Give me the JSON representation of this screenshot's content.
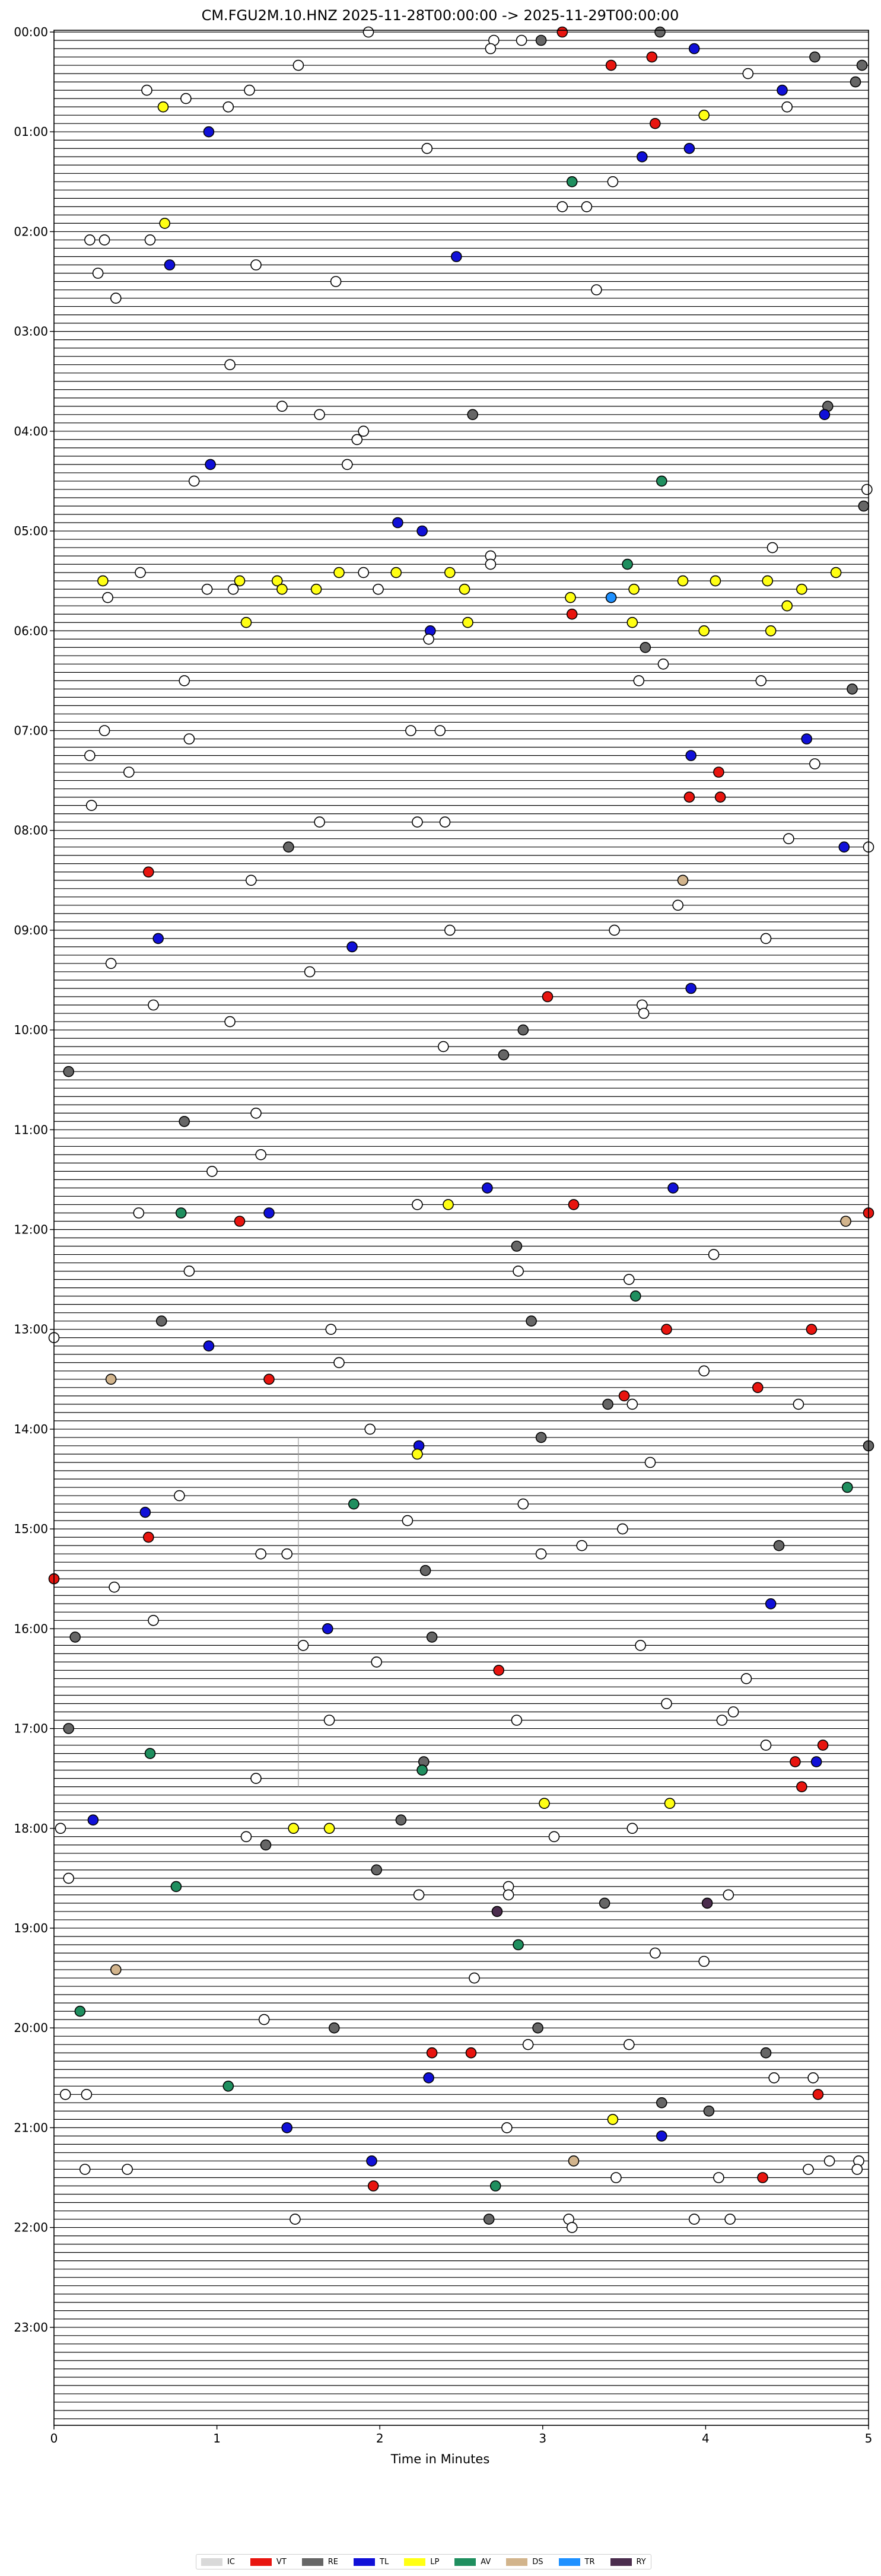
{
  "chart_data": {
    "type": "scatter",
    "title": "CM.FGU2M.10.HNZ  2025-11-28T00:00:00 -> 2025-11-29T00:00:00",
    "xlabel": "Time in Minutes",
    "xlim": [
      0,
      5
    ],
    "x_ticks": [
      "0",
      "1",
      "2",
      "3",
      "4",
      "5"
    ],
    "y_ticks": [
      "00:00",
      "01:00",
      "02:00",
      "03:00",
      "04:00",
      "05:00",
      "06:00",
      "07:00",
      "08:00",
      "09:00",
      "10:00",
      "11:00",
      "12:00",
      "13:00",
      "14:00",
      "15:00",
      "16:00",
      "17:00",
      "18:00",
      "19:00",
      "20:00",
      "21:00",
      "22:00",
      "23:00"
    ],
    "trace_minutes": 5,
    "trace_count": 288,
    "legend": [
      {
        "code": "IC",
        "color": "#d9d9d9"
      },
      {
        "code": "VT",
        "color": "#e8150f"
      },
      {
        "code": "RE",
        "color": "#666666"
      },
      {
        "code": "TL",
        "color": "#1010d8"
      },
      {
        "code": "LP",
        "color": "#ffff14"
      },
      {
        "code": "AV",
        "color": "#1f8f5f"
      },
      {
        "code": "DS",
        "color": "#d2b48c"
      },
      {
        "code": "TR",
        "color": "#1e90ff"
      },
      {
        "code": "RY",
        "color": "#4b2d4e"
      }
    ],
    "marker_colors": {
      "IC": "#ffffff",
      "VT": "#e8150f",
      "RE": "#666666",
      "TL": "#1010d8",
      "LP": "#ffff14",
      "AV": "#1f8f5f",
      "DS": "#d2b48c",
      "TR": "#1e90ff",
      "RY": "#4b2d4e"
    },
    "events": [
      [
        "00:00",
        1.93,
        "IC"
      ],
      [
        "00:00",
        3.12,
        "VT"
      ],
      [
        "00:00",
        3.72,
        "RE"
      ],
      [
        "00:05",
        2.7,
        "IC"
      ],
      [
        "00:05",
        2.99,
        "RE"
      ],
      [
        "00:05",
        2.87,
        "IC"
      ],
      [
        "00:10",
        2.68,
        "IC"
      ],
      [
        "00:10",
        3.93,
        "TL"
      ],
      [
        "00:15",
        3.67,
        "VT"
      ],
      [
        "00:15",
        4.67,
        "RE"
      ],
      [
        "00:20",
        1.5,
        "IC"
      ],
      [
        "00:20",
        3.42,
        "VT"
      ],
      [
        "00:20",
        4.96,
        "RE"
      ],
      [
        "00:25",
        4.26,
        "IC"
      ],
      [
        "00:30",
        4.92,
        "RE"
      ],
      [
        "00:35",
        0.57,
        "IC"
      ],
      [
        "00:35",
        1.2,
        "IC"
      ],
      [
        "00:35",
        4.47,
        "TL"
      ],
      [
        "00:40",
        0.81,
        "IC"
      ],
      [
        "00:45",
        0.67,
        "LP"
      ],
      [
        "00:45",
        1.07,
        "IC"
      ],
      [
        "00:45",
        4.5,
        "IC"
      ],
      [
        "00:50",
        3.99,
        "LP"
      ],
      [
        "00:55",
        3.69,
        "VT"
      ],
      [
        "01:00",
        0.95,
        "TL"
      ],
      [
        "01:10",
        2.29,
        "IC"
      ],
      [
        "01:10",
        3.9,
        "TL"
      ],
      [
        "01:15",
        3.61,
        "TL"
      ],
      [
        "01:30",
        3.18,
        "AV"
      ],
      [
        "01:30",
        3.43,
        "IC"
      ],
      [
        "01:45",
        3.12,
        "IC"
      ],
      [
        "01:45",
        3.27,
        "IC"
      ],
      [
        "01:55",
        0.68,
        "LP"
      ],
      [
        "02:05",
        0.22,
        "IC"
      ],
      [
        "02:05",
        0.31,
        "IC"
      ],
      [
        "02:05",
        0.59,
        "IC"
      ],
      [
        "02:15",
        2.47,
        "TL"
      ],
      [
        "02:20",
        0.71,
        "TL"
      ],
      [
        "02:20",
        1.24,
        "IC"
      ],
      [
        "02:25",
        0.27,
        "IC"
      ],
      [
        "02:30",
        1.73,
        "IC"
      ],
      [
        "02:35",
        3.33,
        "IC"
      ],
      [
        "02:40",
        0.38,
        "IC"
      ],
      [
        "03:20",
        1.08,
        "IC"
      ],
      [
        "03:45",
        1.4,
        "IC"
      ],
      [
        "03:45",
        4.75,
        "RE"
      ],
      [
        "03:50",
        1.63,
        "IC"
      ],
      [
        "03:50",
        2.57,
        "RE"
      ],
      [
        "03:50",
        4.73,
        "TL"
      ],
      [
        "04:00",
        1.9,
        "IC"
      ],
      [
        "04:05",
        1.86,
        "IC"
      ],
      [
        "04:20",
        0.96,
        "TL"
      ],
      [
        "04:20",
        1.8,
        "IC"
      ],
      [
        "04:30",
        0.86,
        "IC"
      ],
      [
        "04:30",
        3.73,
        "AV"
      ],
      [
        "04:35",
        4.99,
        "IC"
      ],
      [
        "04:45",
        4.97,
        "RE"
      ],
      [
        "04:55",
        2.11,
        "TL"
      ],
      [
        "05:00",
        2.26,
        "TL"
      ],
      [
        "05:10",
        4.41,
        "IC"
      ],
      [
        "05:15",
        2.68,
        "IC"
      ],
      [
        "05:20",
        2.68,
        "IC"
      ],
      [
        "05:20",
        3.52,
        "AV"
      ],
      [
        "05:25",
        0.53,
        "IC"
      ],
      [
        "05:25",
        1.75,
        "LP"
      ],
      [
        "05:25",
        1.9,
        "IC"
      ],
      [
        "05:25",
        2.1,
        "LP"
      ],
      [
        "05:25",
        2.43,
        "LP"
      ],
      [
        "05:25",
        4.8,
        "LP"
      ],
      [
        "05:30",
        0.3,
        "LP"
      ],
      [
        "05:30",
        1.14,
        "LP"
      ],
      [
        "05:30",
        1.37,
        "LP"
      ],
      [
        "05:30",
        3.86,
        "LP"
      ],
      [
        "05:30",
        4.06,
        "LP"
      ],
      [
        "05:30",
        4.38,
        "LP"
      ],
      [
        "05:35",
        0.94,
        "IC"
      ],
      [
        "05:35",
        1.1,
        "IC"
      ],
      [
        "05:35",
        1.4,
        "LP"
      ],
      [
        "05:35",
        1.61,
        "LP"
      ],
      [
        "05:35",
        1.99,
        "IC"
      ],
      [
        "05:35",
        2.52,
        "LP"
      ],
      [
        "05:35",
        3.56,
        "LP"
      ],
      [
        "05:35",
        4.59,
        "LP"
      ],
      [
        "05:40",
        0.33,
        "IC"
      ],
      [
        "05:40",
        3.17,
        "LP"
      ],
      [
        "05:40",
        3.42,
        "TR"
      ],
      [
        "05:45",
        4.5,
        "LP"
      ],
      [
        "05:50",
        3.18,
        "VT"
      ],
      [
        "05:55",
        1.18,
        "LP"
      ],
      [
        "05:55",
        2.54,
        "LP"
      ],
      [
        "05:55",
        3.55,
        "LP"
      ],
      [
        "06:00",
        2.31,
        "TL"
      ],
      [
        "06:00",
        3.99,
        "LP"
      ],
      [
        "06:00",
        4.4,
        "LP"
      ],
      [
        "06:05",
        2.3,
        "IC"
      ],
      [
        "06:10",
        3.63,
        "RE"
      ],
      [
        "06:20",
        3.74,
        "IC"
      ],
      [
        "06:30",
        0.8,
        "IC"
      ],
      [
        "06:30",
        3.59,
        "IC"
      ],
      [
        "06:30",
        4.34,
        "IC"
      ],
      [
        "06:35",
        4.9,
        "RE"
      ],
      [
        "07:00",
        0.31,
        "IC"
      ],
      [
        "07:00",
        2.19,
        "IC"
      ],
      [
        "07:00",
        2.37,
        "IC"
      ],
      [
        "07:05",
        0.83,
        "IC"
      ],
      [
        "07:05",
        4.62,
        "TL"
      ],
      [
        "07:15",
        0.22,
        "IC"
      ],
      [
        "07:15",
        3.91,
        "TL"
      ],
      [
        "07:20",
        4.67,
        "IC"
      ],
      [
        "07:25",
        0.46,
        "IC"
      ],
      [
        "07:25",
        4.08,
        "VT"
      ],
      [
        "07:40",
        3.9,
        "VT"
      ],
      [
        "07:40",
        4.09,
        "VT"
      ],
      [
        "07:45",
        0.23,
        "IC"
      ],
      [
        "07:55",
        1.63,
        "IC"
      ],
      [
        "07:55",
        2.23,
        "IC"
      ],
      [
        "07:55",
        2.4,
        "IC"
      ],
      [
        "08:05",
        4.51,
        "IC"
      ],
      [
        "08:10",
        1.44,
        "RE"
      ],
      [
        "08:10",
        4.85,
        "TL"
      ],
      [
        "08:10",
        5.0,
        "IC"
      ],
      [
        "08:25",
        0.58,
        "VT"
      ],
      [
        "08:30",
        1.21,
        "IC"
      ],
      [
        "08:30",
        3.86,
        "DS"
      ],
      [
        "08:45",
        3.83,
        "IC"
      ],
      [
        "09:00",
        2.43,
        "IC"
      ],
      [
        "09:00",
        3.44,
        "IC"
      ],
      [
        "09:05",
        0.64,
        "TL"
      ],
      [
        "09:05",
        4.37,
        "IC"
      ],
      [
        "09:10",
        1.83,
        "TL"
      ],
      [
        "09:20",
        0.35,
        "IC"
      ],
      [
        "09:25",
        1.57,
        "IC"
      ],
      [
        "09:35",
        3.91,
        "TL"
      ],
      [
        "09:40",
        3.03,
        "VT"
      ],
      [
        "09:45",
        0.61,
        "IC"
      ],
      [
        "09:45",
        3.61,
        "IC"
      ],
      [
        "09:50",
        3.62,
        "IC"
      ],
      [
        "09:55",
        1.08,
        "IC"
      ],
      [
        "10:00",
        2.88,
        "RE"
      ],
      [
        "10:10",
        2.39,
        "IC"
      ],
      [
        "10:15",
        2.76,
        "RE"
      ],
      [
        "10:25",
        0.09,
        "RE"
      ],
      [
        "10:50",
        1.24,
        "IC"
      ],
      [
        "10:55",
        0.8,
        "RE"
      ],
      [
        "11:15",
        1.27,
        "IC"
      ],
      [
        "11:25",
        0.97,
        "IC"
      ],
      [
        "11:35",
        2.66,
        "TL"
      ],
      [
        "11:35",
        3.8,
        "TL"
      ],
      [
        "11:45",
        2.23,
        "IC"
      ],
      [
        "11:45",
        2.42,
        "LP"
      ],
      [
        "11:45",
        3.19,
        "VT"
      ],
      [
        "11:50",
        0.52,
        "IC"
      ],
      [
        "11:50",
        0.78,
        "AV"
      ],
      [
        "11:50",
        1.32,
        "TL"
      ],
      [
        "11:50",
        5.0,
        "VT"
      ],
      [
        "11:55",
        1.14,
        "VT"
      ],
      [
        "11:55",
        4.86,
        "DS"
      ],
      [
        "12:10",
        2.84,
        "RE"
      ],
      [
        "12:15",
        4.05,
        "IC"
      ],
      [
        "12:25",
        0.83,
        "IC"
      ],
      [
        "12:25",
        2.85,
        "IC"
      ],
      [
        "12:30",
        3.53,
        "IC"
      ],
      [
        "12:40",
        3.57,
        "AV"
      ],
      [
        "12:55",
        0.66,
        "RE"
      ],
      [
        "12:55",
        2.93,
        "RE"
      ],
      [
        "13:00",
        1.7,
        "IC"
      ],
      [
        "13:00",
        3.76,
        "VT"
      ],
      [
        "13:00",
        4.65,
        "VT"
      ],
      [
        "13:05",
        0.0,
        "IC"
      ],
      [
        "13:10",
        0.95,
        "TL"
      ],
      [
        "13:20",
        1.75,
        "IC"
      ],
      [
        "13:25",
        3.99,
        "IC"
      ],
      [
        "13:30",
        0.35,
        "DS"
      ],
      [
        "13:30",
        1.32,
        "VT"
      ],
      [
        "13:35",
        4.32,
        "VT"
      ],
      [
        "13:40",
        3.5,
        "VT"
      ],
      [
        "13:45",
        3.4,
        "RE"
      ],
      [
        "13:45",
        3.55,
        "IC"
      ],
      [
        "13:45",
        4.57,
        "IC"
      ],
      [
        "14:00",
        1.94,
        "IC"
      ],
      [
        "14:05",
        2.99,
        "RE"
      ],
      [
        "14:10",
        2.24,
        "TL"
      ],
      [
        "14:10",
        5.0,
        "RE"
      ],
      [
        "14:15",
        2.23,
        "LP"
      ],
      [
        "14:20",
        3.66,
        "IC"
      ],
      [
        "14:35",
        4.87,
        "AV"
      ],
      [
        "14:40",
        0.77,
        "IC"
      ],
      [
        "14:45",
        1.84,
        "AV"
      ],
      [
        "14:45",
        2.88,
        "IC"
      ],
      [
        "14:50",
        0.56,
        "TL"
      ],
      [
        "14:55",
        2.17,
        "IC"
      ],
      [
        "15:00",
        3.49,
        "IC"
      ],
      [
        "15:05",
        0.58,
        "VT"
      ],
      [
        "15:10",
        3.24,
        "IC"
      ],
      [
        "15:10",
        4.45,
        "RE"
      ],
      [
        "15:15",
        1.27,
        "IC"
      ],
      [
        "15:15",
        1.43,
        "IC"
      ],
      [
        "15:15",
        2.99,
        "IC"
      ],
      [
        "15:25",
        2.28,
        "RE"
      ],
      [
        "15:30",
        0.0,
        "VT"
      ],
      [
        "15:35",
        0.37,
        "IC"
      ],
      [
        "15:45",
        4.4,
        "TL"
      ],
      [
        "15:55",
        0.61,
        "IC"
      ],
      [
        "16:00",
        1.68,
        "TL"
      ],
      [
        "16:05",
        0.13,
        "RE"
      ],
      [
        "16:05",
        2.32,
        "RE"
      ],
      [
        "16:10",
        1.53,
        "IC"
      ],
      [
        "16:10",
        3.6,
        "IC"
      ],
      [
        "16:20",
        1.98,
        "IC"
      ],
      [
        "16:25",
        2.73,
        "VT"
      ],
      [
        "16:30",
        4.25,
        "IC"
      ],
      [
        "16:45",
        3.76,
        "IC"
      ],
      [
        "16:50",
        4.17,
        "IC"
      ],
      [
        "16:55",
        1.69,
        "IC"
      ],
      [
        "16:55",
        2.84,
        "IC"
      ],
      [
        "16:55",
        4.1,
        "IC"
      ],
      [
        "17:00",
        0.09,
        "RE"
      ],
      [
        "17:10",
        4.37,
        "IC"
      ],
      [
        "17:10",
        4.72,
        "VT"
      ],
      [
        "17:15",
        0.59,
        "AV"
      ],
      [
        "17:20",
        2.27,
        "RE"
      ],
      [
        "17:20",
        4.55,
        "VT"
      ],
      [
        "17:20",
        4.68,
        "TL"
      ],
      [
        "17:25",
        2.26,
        "AV"
      ],
      [
        "17:30",
        1.24,
        "IC"
      ],
      [
        "17:35",
        4.59,
        "VT"
      ],
      [
        "17:45",
        3.01,
        "LP"
      ],
      [
        "17:45",
        3.78,
        "LP"
      ],
      [
        "17:55",
        0.24,
        "TL"
      ],
      [
        "17:55",
        2.13,
        "RE"
      ],
      [
        "18:00",
        0.04,
        "IC"
      ],
      [
        "18:00",
        1.47,
        "LP"
      ],
      [
        "18:00",
        1.69,
        "LP"
      ],
      [
        "18:00",
        3.55,
        "IC"
      ],
      [
        "18:05",
        1.18,
        "IC"
      ],
      [
        "18:05",
        3.07,
        "IC"
      ],
      [
        "18:10",
        1.3,
        "RE"
      ],
      [
        "18:25",
        1.98,
        "RE"
      ],
      [
        "18:30",
        0.09,
        "IC"
      ],
      [
        "18:35",
        0.75,
        "AV"
      ],
      [
        "18:35",
        2.79,
        "IC"
      ],
      [
        "18:40",
        2.79,
        "IC"
      ],
      [
        "18:40",
        2.24,
        "IC"
      ],
      [
        "18:40",
        4.14,
        "IC"
      ],
      [
        "18:45",
        3.38,
        "RE"
      ],
      [
        "18:45",
        4.01,
        "RY"
      ],
      [
        "18:50",
        2.72,
        "RY"
      ],
      [
        "19:10",
        2.85,
        "AV"
      ],
      [
        "19:15",
        3.69,
        "IC"
      ],
      [
        "19:20",
        3.99,
        "IC"
      ],
      [
        "19:25",
        0.38,
        "DS"
      ],
      [
        "19:30",
        2.58,
        "IC"
      ],
      [
        "19:50",
        0.16,
        "AV"
      ],
      [
        "19:55",
        1.29,
        "IC"
      ],
      [
        "20:00",
        1.72,
        "RE"
      ],
      [
        "20:00",
        2.97,
        "RE"
      ],
      [
        "20:10",
        2.91,
        "IC"
      ],
      [
        "20:10",
        3.53,
        "IC"
      ],
      [
        "20:15",
        2.32,
        "VT"
      ],
      [
        "20:15",
        2.56,
        "VT"
      ],
      [
        "20:15",
        4.37,
        "RE"
      ],
      [
        "20:30",
        2.3,
        "TL"
      ],
      [
        "20:30",
        4.42,
        "IC"
      ],
      [
        "20:30",
        4.66,
        "IC"
      ],
      [
        "20:35",
        1.07,
        "AV"
      ],
      [
        "20:40",
        0.07,
        "IC"
      ],
      [
        "20:40",
        0.2,
        "IC"
      ],
      [
        "20:40",
        4.69,
        "VT"
      ],
      [
        "20:45",
        3.73,
        "RE"
      ],
      [
        "20:50",
        4.02,
        "RE"
      ],
      [
        "20:55",
        3.43,
        "LP"
      ],
      [
        "21:00",
        1.43,
        "TL"
      ],
      [
        "21:00",
        2.78,
        "IC"
      ],
      [
        "21:05",
        3.73,
        "TL"
      ],
      [
        "21:20",
        1.95,
        "TL"
      ],
      [
        "21:20",
        3.19,
        "DS"
      ],
      [
        "21:20",
        4.76,
        "IC"
      ],
      [
        "21:20",
        4.94,
        "IC"
      ],
      [
        "21:25",
        0.19,
        "IC"
      ],
      [
        "21:25",
        0.45,
        "IC"
      ],
      [
        "21:25",
        4.63,
        "IC"
      ],
      [
        "21:25",
        4.93,
        "IC"
      ],
      [
        "21:30",
        3.45,
        "IC"
      ],
      [
        "21:30",
        4.08,
        "IC"
      ],
      [
        "21:30",
        4.35,
        "VT"
      ],
      [
        "21:35",
        1.96,
        "VT"
      ],
      [
        "21:35",
        2.71,
        "AV"
      ],
      [
        "21:55",
        1.48,
        "IC"
      ],
      [
        "21:55",
        2.67,
        "RE"
      ],
      [
        "21:55",
        3.16,
        "IC"
      ],
      [
        "21:55",
        3.93,
        "IC"
      ],
      [
        "21:55",
        4.15,
        "IC"
      ],
      [
        "22:00",
        3.18,
        "IC"
      ]
    ],
    "vertical_line": {
      "x": 1.5,
      "from": "14:05",
      "to": "17:35"
    }
  }
}
